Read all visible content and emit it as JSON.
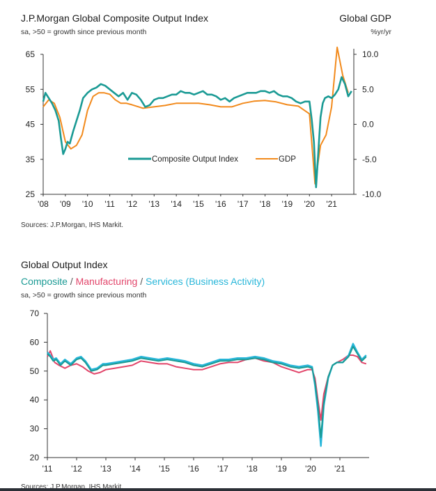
{
  "chart_data": [
    {
      "type": "line",
      "title": "J.P.Morgan Global Composite Output Index",
      "subtitle": "sa, >50 = growth since previous month",
      "right_title": "Global GDP",
      "right_unit": "%yr/yr",
      "source": "Sources: J.P.Morgan, IHS Markit.",
      "xlabels": [
        "'08",
        "'09",
        "'10",
        "'11",
        "'12",
        "'13",
        "'14",
        "'15",
        "'16",
        "'17",
        "'18",
        "'19",
        "'20",
        "'21"
      ],
      "yleft_ticks": [
        "65",
        "55",
        "45",
        "35",
        "25"
      ],
      "yright_ticks": [
        "10.0",
        "5.0",
        "0.0",
        "-5.0",
        "-10.0"
      ],
      "ylim_left": [
        25,
        65
      ],
      "ylim_right": [
        -10,
        10
      ],
      "xlim": [
        2008,
        2022
      ],
      "legend_position": "bottom-center",
      "colors": {
        "composite": "#1a9a94",
        "gdp": "#f28a1c"
      },
      "series": [
        {
          "name": "Composite Output Index",
          "axis": "left",
          "x": [
            2008.0,
            2008.1,
            2008.25,
            2008.4,
            2008.55,
            2008.7,
            2008.8,
            2008.9,
            2009.0,
            2009.1,
            2009.2,
            2009.35,
            2009.5,
            2009.65,
            2009.8,
            2010.0,
            2010.2,
            2010.4,
            2010.6,
            2010.8,
            2011.0,
            2011.2,
            2011.4,
            2011.6,
            2011.8,
            2012.0,
            2012.2,
            2012.4,
            2012.6,
            2012.8,
            2013.0,
            2013.2,
            2013.4,
            2013.6,
            2013.8,
            2014.0,
            2014.2,
            2014.4,
            2014.6,
            2014.8,
            2015.0,
            2015.2,
            2015.4,
            2015.6,
            2015.8,
            2016.0,
            2016.2,
            2016.4,
            2016.6,
            2016.8,
            2017.0,
            2017.2,
            2017.4,
            2017.6,
            2017.8,
            2018.0,
            2018.2,
            2018.4,
            2018.6,
            2018.8,
            2019.0,
            2019.2,
            2019.4,
            2019.6,
            2019.8,
            2020.0,
            2020.1,
            2020.2,
            2020.3,
            2020.4,
            2020.5,
            2020.6,
            2020.7,
            2020.85,
            2021.0,
            2021.15,
            2021.3,
            2021.45,
            2021.6,
            2021.75,
            2021.9
          ],
          "values": [
            51.5,
            54,
            52.5,
            51,
            49,
            46,
            41,
            36.5,
            38,
            40,
            39.5,
            43,
            46,
            49,
            52.5,
            54,
            55,
            55.5,
            56.5,
            56,
            55,
            54,
            53,
            54,
            52,
            54,
            53.5,
            52,
            50,
            50.5,
            52,
            52.5,
            52.5,
            53,
            53.5,
            53.5,
            54.5,
            54,
            54,
            53.5,
            54,
            54.5,
            53.5,
            53.5,
            53,
            52,
            52.5,
            51.5,
            52.5,
            53,
            53.5,
            54,
            54,
            54,
            54.5,
            54.5,
            54,
            54.5,
            53.5,
            53,
            53,
            52.5,
            51.5,
            51,
            51.5,
            51.5,
            46.5,
            40,
            27,
            37,
            47,
            51,
            52.5,
            53,
            52.5,
            53.5,
            55,
            58.5,
            56.5,
            53,
            54.5
          ]
        },
        {
          "name": "GDP",
          "axis": "right",
          "x": [
            2008.0,
            2008.25,
            2008.5,
            2008.75,
            2009.0,
            2009.25,
            2009.5,
            2009.75,
            2010.0,
            2010.25,
            2010.5,
            2010.75,
            2011.0,
            2011.25,
            2011.5,
            2011.75,
            2012.0,
            2012.5,
            2013.0,
            2013.5,
            2014.0,
            2014.5,
            2015.0,
            2015.5,
            2016.0,
            2016.5,
            2017.0,
            2017.5,
            2018.0,
            2018.5,
            2019.0,
            2019.5,
            2020.0,
            2020.25,
            2020.5,
            2020.75,
            2021.0,
            2021.25,
            2021.5,
            2021.75
          ],
          "values": [
            2.5,
            3.5,
            3.0,
            1.0,
            -2.5,
            -3.5,
            -3.0,
            -1.5,
            2.0,
            4.0,
            4.5,
            4.5,
            4.3,
            3.5,
            3.0,
            3.0,
            2.8,
            2.3,
            2.5,
            2.7,
            3.0,
            3.0,
            3.0,
            2.8,
            2.5,
            2.5,
            3.0,
            3.3,
            3.4,
            3.2,
            2.8,
            2.6,
            1.5,
            -8.5,
            -3.0,
            -1.5,
            2.5,
            11.0,
            7.0,
            4.5
          ]
        }
      ]
    },
    {
      "type": "line",
      "title": "Global Output Index",
      "subtitle_parts": [
        "Composite",
        " / ",
        "Manufacturing",
        " / ",
        "Services (Business Activity)"
      ],
      "subtitle": "sa, >50 = growth since previous month",
      "source": "Sources: J.P.Morgan, IHS Markit.",
      "xlabels": [
        "'11",
        "'12",
        "'13",
        "'14",
        "'15",
        "'16",
        "'17",
        "'18",
        "'19",
        "'20",
        "'21"
      ],
      "yticks": [
        "70",
        "60",
        "50",
        "40",
        "30",
        "20"
      ],
      "ylim": [
        20,
        70
      ],
      "xlim": [
        2011,
        2022
      ],
      "colors": {
        "composite": "#1a9a94",
        "manufacturing": "#e2456a",
        "services": "#27b6d9"
      },
      "series": [
        {
          "name": "Composite",
          "x": [
            2011.0,
            2011.1,
            2011.2,
            2011.3,
            2011.45,
            2011.6,
            2011.8,
            2012.0,
            2012.15,
            2012.3,
            2012.5,
            2012.7,
            2012.9,
            2013.0,
            2013.3,
            2013.6,
            2013.9,
            2014.2,
            2014.5,
            2014.8,
            2015.1,
            2015.4,
            2015.7,
            2016.0,
            2016.3,
            2016.6,
            2016.9,
            2017.2,
            2017.5,
            2017.8,
            2018.1,
            2018.4,
            2018.7,
            2019.0,
            2019.3,
            2019.6,
            2019.9,
            2020.05,
            2020.15,
            2020.25,
            2020.35,
            2020.45,
            2020.6,
            2020.75,
            2020.9,
            2021.1,
            2021.3,
            2021.45,
            2021.6,
            2021.75,
            2021.9
          ],
          "values": [
            56,
            55,
            53.5,
            54,
            52,
            53.5,
            52,
            54,
            54.5,
            53,
            50,
            50.5,
            52,
            52,
            52.5,
            53,
            53.5,
            54.5,
            54,
            53.5,
            54,
            53.5,
            53,
            52,
            51.5,
            52.5,
            53.5,
            53.5,
            54,
            54,
            54.5,
            54,
            53,
            52.5,
            51.5,
            51,
            51.5,
            51,
            46,
            38,
            27,
            39,
            48,
            52,
            53,
            53,
            55,
            58.5,
            56,
            53.5,
            55
          ]
        },
        {
          "name": "Manufacturing",
          "x": [
            2011.0,
            2011.1,
            2011.25,
            2011.4,
            2011.6,
            2011.8,
            2012.0,
            2012.2,
            2012.4,
            2012.6,
            2012.8,
            2013.0,
            2013.3,
            2013.6,
            2013.9,
            2014.2,
            2014.5,
            2014.8,
            2015.1,
            2015.4,
            2015.7,
            2016.0,
            2016.3,
            2016.6,
            2016.9,
            2017.2,
            2017.5,
            2017.8,
            2018.1,
            2018.4,
            2018.7,
            2019.0,
            2019.3,
            2019.6,
            2019.9,
            2020.05,
            2020.15,
            2020.25,
            2020.35,
            2020.45,
            2020.6,
            2020.75,
            2020.9,
            2021.1,
            2021.3,
            2021.45,
            2021.6,
            2021.75,
            2021.9
          ],
          "values": [
            55,
            57,
            53,
            52,
            51,
            52,
            52.5,
            51.5,
            50,
            49,
            49.5,
            50.5,
            51,
            51.5,
            52,
            53.5,
            53,
            52.5,
            52.5,
            51.5,
            51,
            50.5,
            50.5,
            51.5,
            52.5,
            53,
            53,
            54,
            54.5,
            53.5,
            53,
            51.5,
            50.5,
            49.5,
            50.5,
            50.5,
            47.5,
            40,
            33,
            42,
            48,
            52,
            53,
            54,
            55.5,
            55.5,
            55,
            53,
            52.5
          ]
        },
        {
          "name": "Services (Business Activity)",
          "x": [
            2011.0,
            2011.1,
            2011.2,
            2011.3,
            2011.45,
            2011.6,
            2011.8,
            2012.0,
            2012.15,
            2012.3,
            2012.5,
            2012.7,
            2012.9,
            2013.0,
            2013.3,
            2013.6,
            2013.9,
            2014.2,
            2014.5,
            2014.8,
            2015.1,
            2015.4,
            2015.7,
            2016.0,
            2016.3,
            2016.6,
            2016.9,
            2017.2,
            2017.5,
            2017.8,
            2018.1,
            2018.4,
            2018.7,
            2019.0,
            2019.3,
            2019.6,
            2019.9,
            2020.05,
            2020.15,
            2020.25,
            2020.35,
            2020.45,
            2020.6,
            2020.75,
            2020.9,
            2021.1,
            2021.3,
            2021.45,
            2021.6,
            2021.75,
            2021.9
          ],
          "values": [
            56.5,
            55.5,
            54,
            54.5,
            52.5,
            54,
            52.5,
            54.5,
            55,
            53.5,
            50.5,
            51,
            52.5,
            52.5,
            53,
            53.5,
            54,
            55,
            54.5,
            54,
            54.5,
            54,
            53.5,
            52.5,
            52,
            53,
            54,
            54,
            54.5,
            54.5,
            55,
            54.5,
            53.5,
            53,
            52,
            51.5,
            52,
            51.5,
            45,
            36,
            24,
            38,
            47.5,
            52,
            53,
            53,
            55.5,
            59.5,
            56.5,
            54,
            55.5
          ]
        }
      ]
    }
  ]
}
